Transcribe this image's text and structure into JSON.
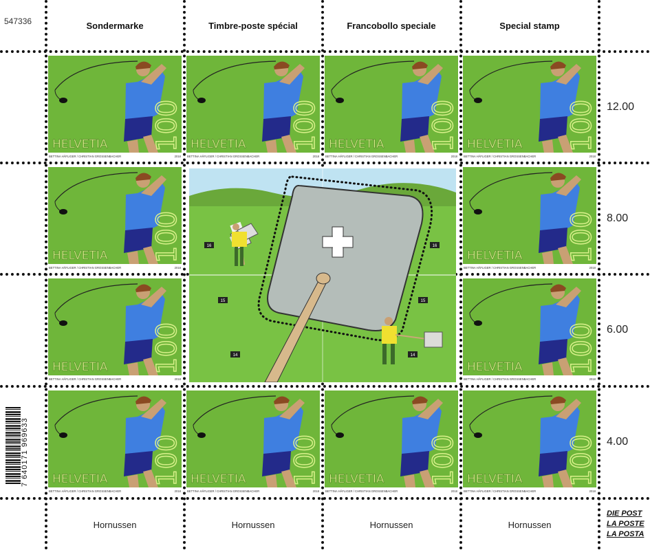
{
  "sheet_number": "547336",
  "column_headers": [
    "Sondermarke",
    "Timbre-poste spécial",
    "Francobollo speciale",
    "Special stamp"
  ],
  "column_footers": [
    "Hornussen",
    "Hornussen",
    "Hornussen",
    "Hornussen"
  ],
  "row_prices": [
    "12.00",
    "8.00",
    "6.00",
    "4.00"
  ],
  "stamp": {
    "country": "HELVETIA",
    "value": "100",
    "credit": "BETTINA HÄFLIGER / CHRISTIAN GROSSENBACHER",
    "year": "2018"
  },
  "barcode": {
    "number": "7 640171 969633"
  },
  "gutter_markers": [
    "16",
    "16",
    "15",
    "15",
    "14",
    "14"
  ],
  "logo": {
    "lines": [
      "DIE POST",
      "LA POSTE",
      "LA POSTA"
    ]
  },
  "colors": {
    "grass": "#6fb63a",
    "shirt": "#3f7fe0",
    "shorts": "#232a8a",
    "skin": "#c9a074",
    "cross_red": "#e30613"
  }
}
